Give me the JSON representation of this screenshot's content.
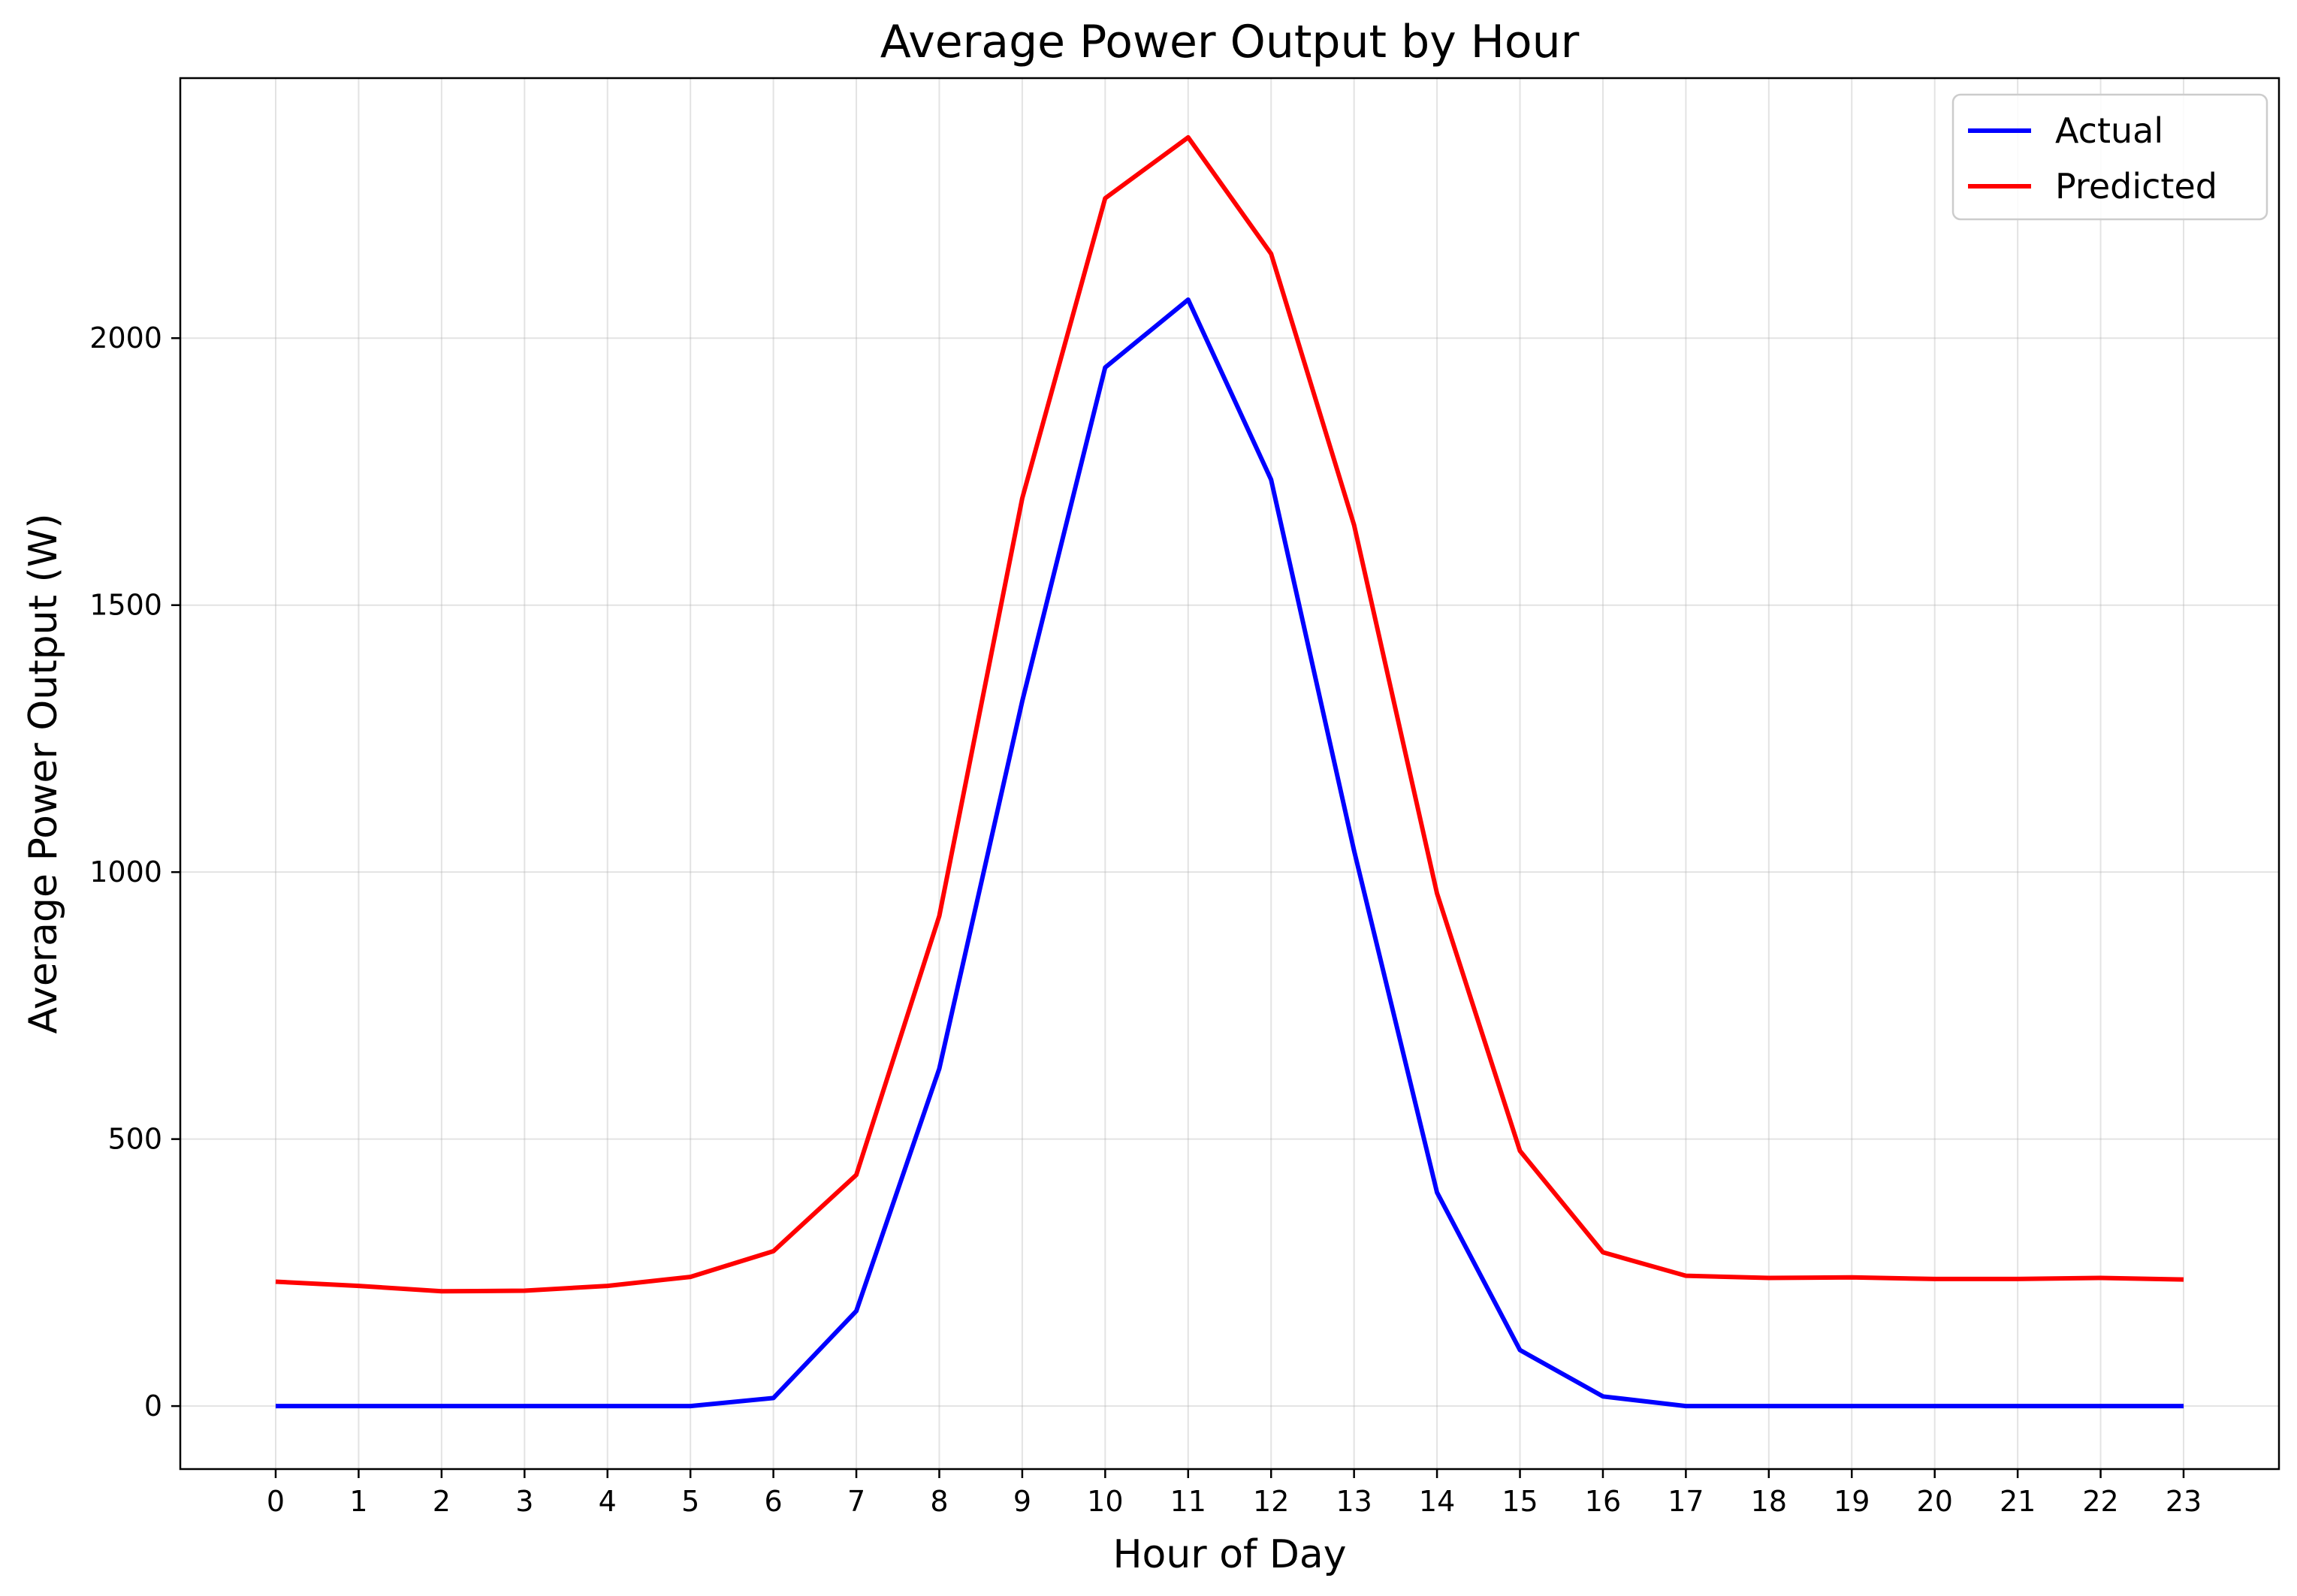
{
  "chart_data": {
    "type": "line",
    "title": "Average Power Output by Hour",
    "xlabel": "Hour of Day",
    "ylabel": "Average Power Output (W)",
    "x": [
      0,
      1,
      2,
      3,
      4,
      5,
      6,
      7,
      8,
      9,
      10,
      11,
      12,
      13,
      14,
      15,
      16,
      17,
      18,
      19,
      20,
      21,
      22,
      23
    ],
    "xticks": [
      "0",
      "1",
      "2",
      "3",
      "4",
      "5",
      "6",
      "7",
      "8",
      "9",
      "10",
      "11",
      "12",
      "13",
      "14",
      "15",
      "16",
      "17",
      "18",
      "19",
      "20",
      "21",
      "22",
      "23"
    ],
    "yticks": [
      0,
      500,
      1000,
      1500,
      2000
    ],
    "xlim": [
      -1.15,
      24.15
    ],
    "ylim": [
      -118,
      2487
    ],
    "grid": true,
    "legend_position": "top-right",
    "series": [
      {
        "name": "Actual",
        "color": "#0000ff",
        "values": [
          0,
          0,
          0,
          0,
          0,
          0,
          15,
          178,
          632,
          1320,
          1945,
          2072,
          1735,
          1040,
          400,
          105,
          18,
          0,
          0,
          0,
          0,
          0,
          0,
          0
        ]
      },
      {
        "name": "Predicted",
        "color": "#ff0000",
        "values": [
          233,
          225,
          215,
          216,
          225,
          242,
          290,
          433,
          918,
          1700,
          2262,
          2376,
          2158,
          1650,
          960,
          478,
          288,
          244,
          240,
          241,
          238,
          238,
          240,
          237
        ]
      }
    ]
  }
}
